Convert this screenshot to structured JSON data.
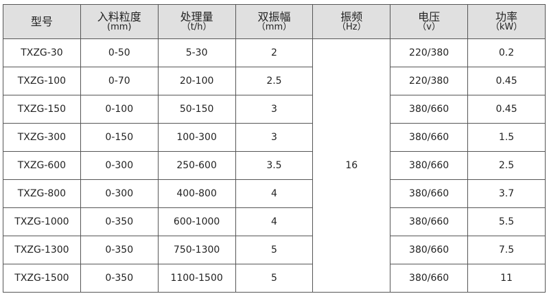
{
  "headers": [
    {
      "label": "型号",
      "unit": ""
    },
    {
      "label": "入料粒度",
      "unit": "(mm)"
    },
    {
      "label": "处理量",
      "unit": "（t/h）"
    },
    {
      "label": "双振幅",
      "unit": "（mm）"
    },
    {
      "label": "振频",
      "unit": "（Hz）"
    },
    {
      "label": "电压",
      "unit": "（v）"
    },
    {
      "label": "功率",
      "unit": "（kW）"
    }
  ],
  "frequency": "16",
  "rows": [
    {
      "model": "TXZG-30",
      "feed": "0-50",
      "capacity": "5-30",
      "amplitude": "2",
      "voltage": "220/380",
      "power": "0.2"
    },
    {
      "model": "TXZG-100",
      "feed": "0-70",
      "capacity": "20-100",
      "amplitude": "2.5",
      "voltage": "220/380",
      "power": "0.45"
    },
    {
      "model": "TXZG-150",
      "feed": "0-100",
      "capacity": "50-150",
      "amplitude": "3",
      "voltage": "380/660",
      "power": "0.45"
    },
    {
      "model": "TXZG-300",
      "feed": "0-150",
      "capacity": "100-300",
      "amplitude": "3",
      "voltage": "380/660",
      "power": "1.5"
    },
    {
      "model": "TXZG-600",
      "feed": "0-300",
      "capacity": "250-600",
      "amplitude": "3.5",
      "voltage": "380/660",
      "power": "2.5"
    },
    {
      "model": "TXZG-800",
      "feed": "0-300",
      "capacity": "400-800",
      "amplitude": "4",
      "voltage": "380/660",
      "power": "3.7"
    },
    {
      "model": "TXZG-1000",
      "feed": "0-350",
      "capacity": "600-1000",
      "amplitude": "4",
      "voltage": "380/660",
      "power": "5.5"
    },
    {
      "model": "TXZG-1300",
      "feed": "0-350",
      "capacity": "750-1300",
      "amplitude": "5",
      "voltage": "380/660",
      "power": "7.5"
    },
    {
      "model": "TXZG-1500",
      "feed": "0-350",
      "capacity": "1100-1500",
      "amplitude": "5",
      "voltage": "380/660",
      "power": "11"
    }
  ]
}
